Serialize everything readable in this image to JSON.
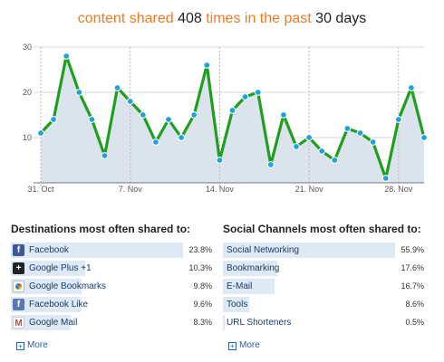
{
  "headline": {
    "part1": "content shared ",
    "count": "408",
    "part2": " times in the past ",
    "days": "30 days"
  },
  "colors": {
    "accent_orange": "#f07a22",
    "line": "#1f9e1f",
    "area": "#dbe3ed",
    "point": "#1fa3d8",
    "bar": "#dde9f4"
  },
  "chart_data": {
    "type": "line",
    "x": [
      "Oct 31",
      "Nov 1",
      "Nov 2",
      "Nov 3",
      "Nov 4",
      "Nov 5",
      "Nov 6",
      "Nov 7",
      "Nov 8",
      "Nov 9",
      "Nov 10",
      "Nov 11",
      "Nov 12",
      "Nov 13",
      "Nov 14",
      "Nov 15",
      "Nov 16",
      "Nov 17",
      "Nov 18",
      "Nov 19",
      "Nov 20",
      "Nov 21",
      "Nov 22",
      "Nov 23",
      "Nov 24",
      "Nov 25",
      "Nov 26",
      "Nov 27",
      "Nov 28",
      "Nov 29",
      "Nov 30"
    ],
    "values": [
      11,
      14,
      28,
      20,
      14,
      6,
      21,
      18,
      15,
      9,
      14,
      10,
      15,
      26,
      5,
      16,
      19,
      20,
      4,
      15,
      8,
      10,
      7,
      5,
      12,
      11,
      9,
      1,
      14,
      21,
      10
    ],
    "ylim": [
      0,
      30
    ],
    "yticks": [
      10,
      20,
      30
    ],
    "xtick_labels": [
      "31. Oct",
      "7. Nov",
      "14. Nov",
      "21. Nov",
      "28. Nov"
    ],
    "xtick_index": [
      0,
      7,
      14,
      21,
      28
    ],
    "grid": true
  },
  "destinations": {
    "title": "Destinations most often shared to:",
    "items": [
      {
        "label": "Facebook",
        "pct": "23.8%",
        "value": 23.8,
        "icon": "facebook-icon",
        "glyph": "f",
        "cls": "facebook"
      },
      {
        "label": "Google Plus +1",
        "pct": "10.3%",
        "value": 10.3,
        "icon": "google-plus-icon",
        "glyph": "+",
        "cls": "gplus"
      },
      {
        "label": "Google Bookmarks",
        "pct": "9.8%",
        "value": 9.8,
        "icon": "google-bookmarks-icon",
        "glyph": "",
        "cls": "bookmarks"
      },
      {
        "label": "Facebook Like",
        "pct": "9.6%",
        "value": 9.6,
        "icon": "facebook-like-icon",
        "glyph": "f",
        "cls": "fblike"
      },
      {
        "label": "Google Mail",
        "pct": "8.3%",
        "value": 8.3,
        "icon": "gmail-icon",
        "glyph": "M",
        "cls": "gmail"
      }
    ],
    "more": "More"
  },
  "channels": {
    "title": "Social Channels most often shared to:",
    "items": [
      {
        "label": "Social Networking",
        "pct": "55.9%",
        "value": 55.9
      },
      {
        "label": "Bookmarking",
        "pct": "17.6%",
        "value": 17.6
      },
      {
        "label": "E-Mail",
        "pct": "16.7%",
        "value": 16.7
      },
      {
        "label": "Tools",
        "pct": "8.6%",
        "value": 8.6
      },
      {
        "label": "URL Shorteners",
        "pct": "0.5%",
        "value": 0.5
      }
    ],
    "more": "More"
  }
}
